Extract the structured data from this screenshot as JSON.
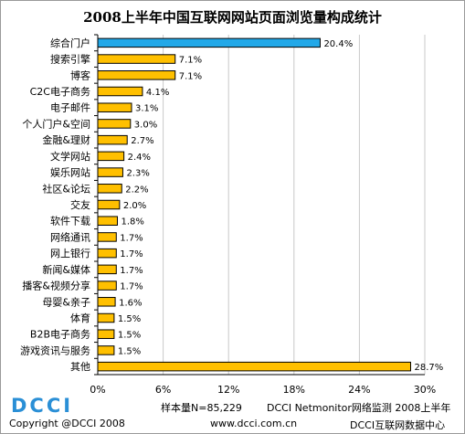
{
  "title": "2008上半年中国互联网网站页面浏览量构成统计",
  "chart_data": {
    "type": "bar",
    "orientation": "horizontal",
    "title": "2008上半年中国互联网网站页面浏览量构成统计",
    "categories": [
      "综合门户",
      "搜索引擎",
      "博客",
      "C2C电子商务",
      "电子邮件",
      "个人门户&空间",
      "金融&理财",
      "文学网站",
      "娱乐网站",
      "社区&论坛",
      "交友",
      "软件下载",
      "网络通讯",
      "网上银行",
      "新闻&媒体",
      "播客&视频分享",
      "母婴&亲子",
      "体育",
      "B2B电子商务",
      "游戏资讯与服务",
      "其他"
    ],
    "values": [
      20.4,
      7.1,
      7.1,
      4.1,
      3.1,
      3.0,
      2.7,
      2.4,
      2.3,
      2.2,
      2.0,
      1.8,
      1.7,
      1.7,
      1.7,
      1.7,
      1.6,
      1.5,
      1.5,
      1.5,
      28.7
    ],
    "value_labels": [
      "20.4%",
      "7.1%",
      "7.1%",
      "4.1%",
      "3.1%",
      "3.0%",
      "2.7%",
      "2.4%",
      "2.3%",
      "2.2%",
      "2.0%",
      "1.8%",
      "1.7%",
      "1.7%",
      "1.7%",
      "1.7%",
      "1.6%",
      "1.5%",
      "1.5%",
      "1.5%",
      "28.7%"
    ],
    "highlight_index": 0,
    "xlim": [
      0,
      30
    ],
    "xticks": [
      0,
      6,
      12,
      18,
      24,
      30
    ],
    "xtick_labels": [
      "0%",
      "6%",
      "12%",
      "18%",
      "24%",
      "30%"
    ],
    "grid": true,
    "colors": {
      "bar": "#ffc000",
      "highlight": "#22a8e8",
      "bar_edge": "#000000",
      "grid": "#c8c8c8"
    }
  },
  "footer": {
    "logo": "DCCI",
    "copyright": "Copyright @DCCI 2008",
    "sample": "样本量N=85,229",
    "source": "DCCI Netmonitor网络监测 2008上半年",
    "website": "www.dcci.com.cn",
    "center": "DCCI互联网数据中心"
  }
}
